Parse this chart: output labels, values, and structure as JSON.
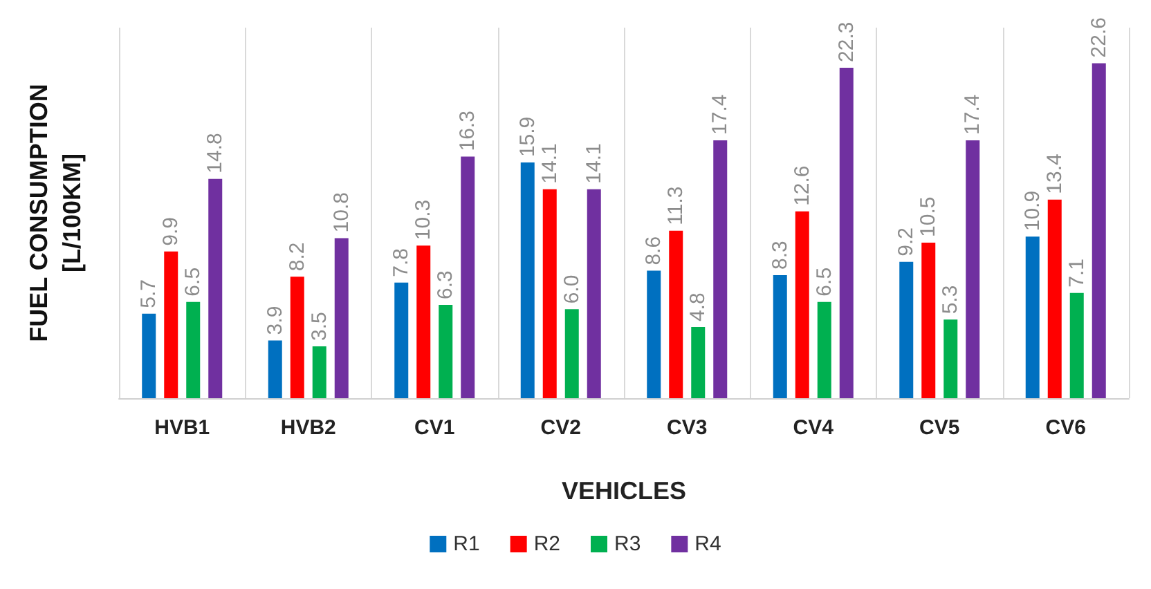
{
  "chart_data": {
    "type": "bar",
    "xlabel": "VEHICLES",
    "ylabel": "FUEL CONSUMPTION\n[L/100KM]",
    "categories": [
      "HVB1",
      "HVB2",
      "CV1",
      "CV2",
      "CV3",
      "CV4",
      "CV5",
      "CV6"
    ],
    "series": [
      {
        "name": "R1",
        "color": "#0070c0",
        "values": [
          5.7,
          3.9,
          7.8,
          15.9,
          8.6,
          8.3,
          9.2,
          10.9
        ],
        "value_labels": [
          "5.7",
          "3.9",
          "7.8",
          "15.9",
          "8.6",
          "8.3",
          "9.2",
          "10.9"
        ]
      },
      {
        "name": "R2",
        "color": "#ff0000",
        "values": [
          9.9,
          8.2,
          10.3,
          14.1,
          11.3,
          12.6,
          10.5,
          13.4
        ],
        "value_labels": [
          "9.9",
          "8.2",
          "10.3",
          "14.1",
          "11.3",
          "12.6",
          "10.5",
          "13.4"
        ]
      },
      {
        "name": "R3",
        "color": "#00b050",
        "values": [
          6.5,
          3.5,
          6.3,
          6.0,
          4.8,
          6.5,
          5.3,
          7.1
        ],
        "value_labels": [
          "6.5",
          "3.5",
          "6.3",
          "6.0",
          "4.8",
          "6.5",
          "5.3",
          "7.1"
        ]
      },
      {
        "name": "R4",
        "color": "#7030a0",
        "values": [
          14.8,
          10.8,
          16.3,
          14.1,
          17.4,
          22.3,
          17.4,
          22.6
        ],
        "value_labels": [
          "14.8",
          "10.8",
          "16.3",
          "14.1",
          "17.4",
          "22.3",
          "17.4",
          "22.6"
        ]
      }
    ],
    "grid": "x",
    "legend": "bottom"
  }
}
